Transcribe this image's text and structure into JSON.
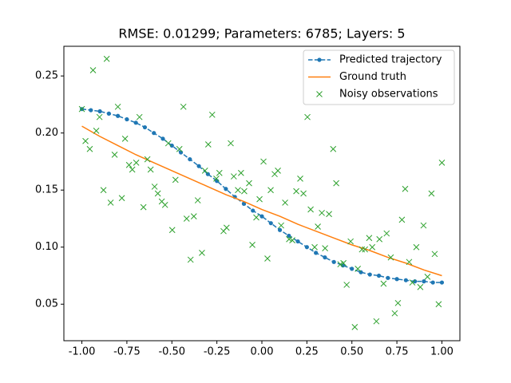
{
  "chart_data": {
    "type": "line",
    "title": "RMSE: 0.01299; Parameters: 6785; Layers: 5",
    "xlim": [
      -1.1,
      1.1
    ],
    "ylim": [
      0.018,
      0.276
    ],
    "xticks": [
      {
        "value": -1,
        "label": "-1.00"
      },
      -0.75,
      {
        "value": -0.5,
        "label": "-0.50"
      },
      -0.25,
      {
        "value": 0,
        "label": "0.00"
      },
      0.25,
      {
        "value": 0.5,
        "label": "0.50"
      },
      0.75,
      {
        "value": 1,
        "label": "1.00"
      }
    ],
    "yticks": [
      0.05,
      {
        "value": 0.1,
        "label": "0.10"
      },
      0.15,
      {
        "value": 0.2,
        "label": "0.20"
      },
      0.25
    ],
    "legend": "upper right",
    "series": [
      {
        "name": "Predicted trajectory",
        "color": "#1f77b4",
        "linestyle": "dashed",
        "marker": "dot",
        "x": [
          -1,
          -0.95,
          -0.9,
          -0.85,
          -0.8,
          -0.75,
          -0.7,
          -0.65,
          -0.6,
          -0.55,
          -0.5,
          -0.45,
          -0.4,
          -0.35,
          -0.3,
          -0.25,
          -0.2,
          -0.15,
          -0.1,
          -0.05,
          0,
          0.05,
          0.1,
          0.15,
          0.2,
          0.25,
          0.3,
          0.35,
          0.4,
          0.45,
          0.5,
          0.55,
          0.6,
          0.65,
          0.7,
          0.75,
          0.8,
          0.85,
          0.9,
          0.95,
          1
        ],
        "values": [
          0.221,
          0.22,
          0.219,
          0.217,
          0.215,
          0.212,
          0.209,
          0.205,
          0.2,
          0.195,
          0.189,
          0.183,
          0.177,
          0.171,
          0.164,
          0.158,
          0.151,
          0.144,
          0.138,
          0.132,
          0.127,
          0.121,
          0.115,
          0.11,
          0.105,
          0.1,
          0.095,
          0.091,
          0.087,
          0.084,
          0.081,
          0.078,
          0.076,
          0.075,
          0.073,
          0.072,
          0.071,
          0.07,
          0.07,
          0.069,
          0.069
        ]
      },
      {
        "name": "Ground truth",
        "color": "#ff7f0e",
        "linestyle": "solid",
        "marker": "none",
        "x": [
          -1,
          -0.9,
          -0.8,
          -0.7,
          -0.6,
          -0.5,
          -0.4,
          -0.3,
          -0.2,
          -0.1,
          0,
          0.1,
          0.2,
          0.3,
          0.4,
          0.5,
          0.6,
          0.7,
          0.8,
          0.9,
          1
        ],
        "values": [
          0.206,
          0.197,
          0.189,
          0.181,
          0.174,
          0.167,
          0.16,
          0.153,
          0.146,
          0.14,
          0.133,
          0.127,
          0.12,
          0.114,
          0.108,
          0.102,
          0.097,
          0.091,
          0.086,
          0.08,
          0.075
        ]
      },
      {
        "name": "Noisy observations",
        "color": "#2ca02c",
        "linestyle": "none",
        "marker": "x",
        "x": [
          -1.0,
          -0.98,
          -0.956,
          -0.938,
          -0.92,
          -0.902,
          -0.88,
          -0.862,
          -0.84,
          -0.818,
          -0.8,
          -0.778,
          -0.76,
          -0.738,
          -0.72,
          -0.698,
          -0.68,
          -0.658,
          -0.636,
          -0.618,
          -0.596,
          -0.578,
          -0.556,
          -0.538,
          -0.52,
          -0.498,
          -0.48,
          -0.458,
          -0.436,
          -0.418,
          -0.396,
          -0.378,
          -0.356,
          -0.333,
          -0.316,
          -0.298,
          -0.276,
          -0.253,
          -0.236,
          -0.213,
          -0.196,
          -0.173,
          -0.156,
          -0.133,
          -0.116,
          -0.098,
          -0.071,
          -0.053,
          -0.031,
          -0.013,
          0.009,
          0.031,
          0.049,
          0.071,
          0.089,
          0.107,
          0.129,
          0.151,
          0.169,
          0.191,
          0.213,
          0.231,
          0.253,
          0.271,
          0.293,
          0.311,
          0.333,
          0.351,
          0.373,
          0.396,
          0.413,
          0.436,
          0.453,
          0.471,
          0.493,
          0.516,
          0.533,
          0.556,
          0.573,
          0.596,
          0.613,
          0.636,
          0.653,
          0.676,
          0.693,
          0.716,
          0.738,
          0.756,
          0.778,
          0.796,
          0.818,
          0.836,
          0.858,
          0.88,
          0.898,
          0.92,
          0.942,
          0.96,
          0.982,
          1.0
        ],
        "values": [
          0.221,
          0.193,
          0.186,
          0.255,
          0.202,
          0.214,
          0.15,
          0.265,
          0.139,
          0.181,
          0.223,
          0.143,
          0.195,
          0.172,
          0.168,
          0.174,
          0.214,
          0.135,
          0.177,
          0.168,
          0.153,
          0.147,
          0.14,
          0.137,
          0.191,
          0.115,
          0.159,
          0.186,
          0.223,
          0.125,
          0.089,
          0.127,
          0.141,
          0.095,
          0.167,
          0.19,
          0.216,
          0.16,
          0.165,
          0.114,
          0.117,
          0.191,
          0.162,
          0.15,
          0.165,
          0.149,
          0.156,
          0.102,
          0.126,
          0.142,
          0.175,
          0.09,
          0.15,
          0.164,
          0.167,
          0.119,
          0.139,
          0.107,
          0.106,
          0.149,
          0.16,
          0.147,
          0.214,
          0.133,
          0.1,
          0.118,
          0.13,
          0.099,
          0.129,
          0.186,
          0.156,
          0.085,
          0.086,
          0.067,
          0.105,
          0.03,
          0.081,
          0.098,
          0.098,
          0.108,
          0.1,
          0.035,
          0.107,
          0.068,
          0.112,
          0.091,
          0.042,
          0.051,
          0.124,
          0.151,
          0.087,
          0.069,
          0.1,
          0.065,
          0.119,
          0.074,
          0.147,
          0.094,
          0.05,
          0.174
        ]
      }
    ]
  }
}
